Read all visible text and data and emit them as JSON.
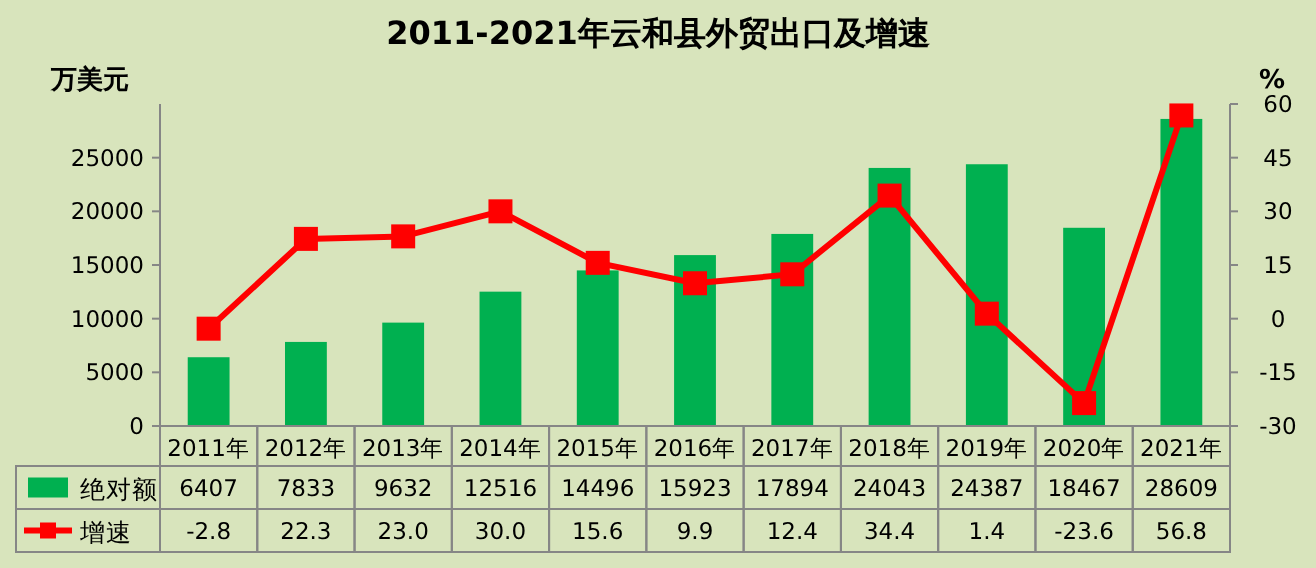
{
  "chart_data": {
    "type": "bar",
    "title": "2011-2021年云和县外贸出口及增速",
    "ylabel": "万美元",
    "y2label": "%",
    "categories": [
      "2011年",
      "2012年",
      "2013年",
      "2014年",
      "2015年",
      "2016年",
      "2017年",
      "2018年",
      "2019年",
      "2020年",
      "2021年"
    ],
    "series": [
      {
        "name": "绝对额",
        "color": "#00b050",
        "values": [
          6407,
          7833,
          9632,
          12516,
          14496,
          15923,
          17894,
          24043,
          24387,
          18467,
          28609
        ]
      },
      {
        "name": "增速",
        "type": "line",
        "axis": "y2",
        "color": "#ff0000",
        "values": [
          -2.8,
          22.3,
          23.0,
          30.0,
          15.6,
          9.9,
          12.4,
          34.4,
          1.4,
          -23.6,
          56.8
        ],
        "value_labels": [
          "-2.8",
          "22.3",
          "23.0",
          "30.0",
          "15.6",
          "9.9",
          "12.4",
          "34.4",
          "1.4",
          "-23.6",
          "56.8"
        ]
      }
    ],
    "ylim": [
      0,
      30000
    ],
    "yticks": [
      0,
      5000,
      10000,
      15000,
      20000,
      25000
    ],
    "y2lim": [
      -30,
      60
    ],
    "y2ticks": [
      -30,
      -15,
      0,
      15,
      30,
      45,
      60
    ],
    "marker": "square",
    "data_labels": true,
    "legend": "bottom left"
  }
}
